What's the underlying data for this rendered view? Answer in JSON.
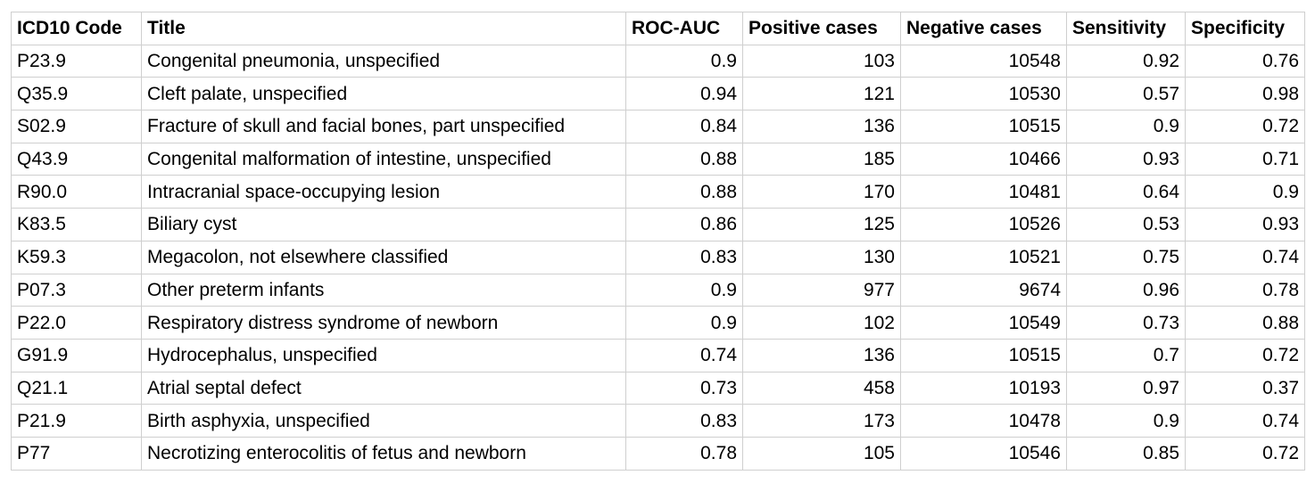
{
  "table": {
    "columns": [
      "ICD10 Code",
      "Title",
      "ROC-AUC",
      "Positive cases",
      "Negative cases",
      "Sensitivity",
      "Specificity"
    ],
    "rows": [
      [
        "P23.9",
        "Congenital pneumonia, unspecified",
        "0.9",
        "103",
        "10548",
        "0.92",
        "0.76"
      ],
      [
        "Q35.9",
        "Cleft palate, unspecified",
        "0.94",
        "121",
        "10530",
        "0.57",
        "0.98"
      ],
      [
        "S02.9",
        "Fracture of skull and facial bones, part unspecified",
        "0.84",
        "136",
        "10515",
        "0.9",
        "0.72"
      ],
      [
        "Q43.9",
        "Congenital malformation of intestine, unspecified",
        "0.88",
        "185",
        "10466",
        "0.93",
        "0.71"
      ],
      [
        "R90.0",
        "Intracranial space-occupying lesion",
        "0.88",
        "170",
        "10481",
        "0.64",
        "0.9"
      ],
      [
        "K83.5",
        "Biliary cyst",
        "0.86",
        "125",
        "10526",
        "0.53",
        "0.93"
      ],
      [
        "K59.3",
        "Megacolon, not elsewhere classified",
        "0.83",
        "130",
        "10521",
        "0.75",
        "0.74"
      ],
      [
        "P07.3",
        "Other preterm infants",
        "0.9",
        "977",
        "9674",
        "0.96",
        "0.78"
      ],
      [
        "P22.0",
        "Respiratory distress syndrome of newborn",
        "0.9",
        "102",
        "10549",
        "0.73",
        "0.88"
      ],
      [
        "G91.9",
        "Hydrocephalus, unspecified",
        "0.74",
        "136",
        "10515",
        "0.7",
        "0.72"
      ],
      [
        "Q21.1",
        "Atrial septal defect",
        "0.73",
        "458",
        "10193",
        "0.97",
        "0.37"
      ],
      [
        "P21.9",
        "Birth asphyxia, unspecified",
        "0.83",
        "173",
        "10478",
        "0.9",
        "0.74"
      ],
      [
        "P77",
        "Necrotizing enterocolitis of fetus and newborn",
        "0.78",
        "105",
        "10546",
        "0.85",
        "0.72"
      ]
    ]
  }
}
